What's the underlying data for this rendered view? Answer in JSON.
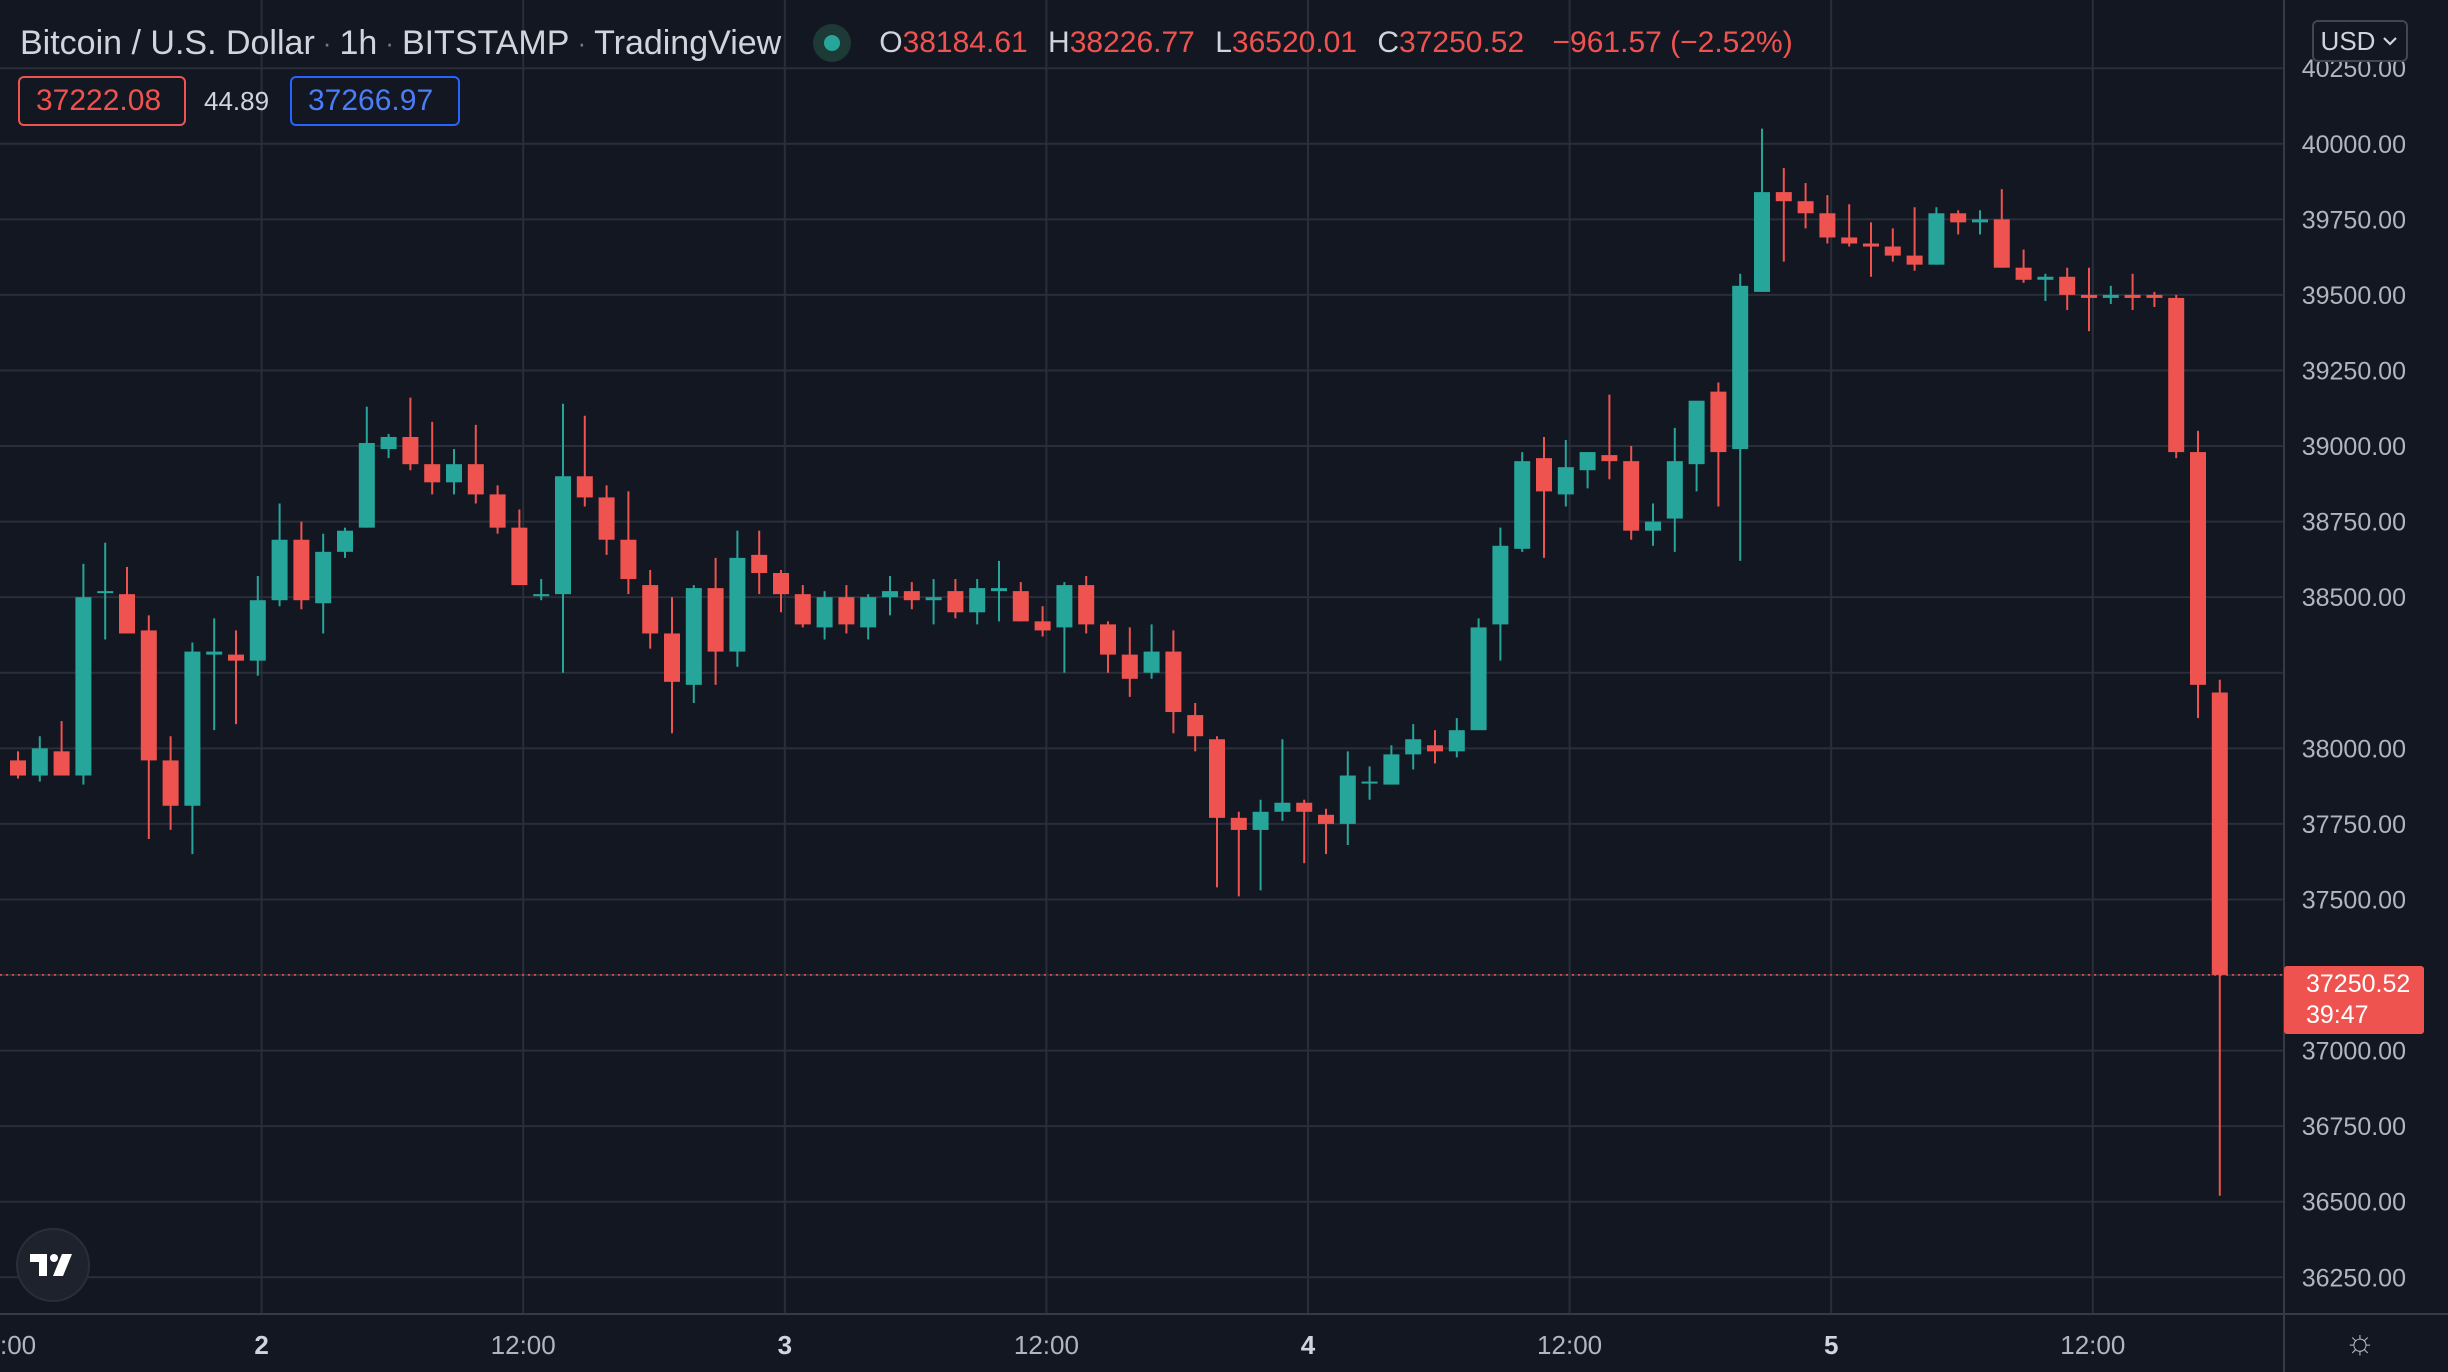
{
  "header": {
    "symbol": "Bitcoin / U.S. Dollar",
    "interval": "1h",
    "exchange": "BITSTAMP",
    "source": "TradingView",
    "sep": "·",
    "ohlc": {
      "o_label": "O",
      "o": "38184.61",
      "h_label": "H",
      "h": "38226.77",
      "l_label": "L",
      "l": "36520.01",
      "c_label": "C",
      "c": "37250.52",
      "change": "−961.57 (−2.52%)"
    }
  },
  "quote": {
    "sell": "37222.08",
    "spread": "44.89",
    "buy": "37266.97"
  },
  "currency_button": "USD",
  "price_tag": {
    "price": "37250.52",
    "countdown": "39:47"
  },
  "icons": {
    "logo": "tradingview-logo-icon",
    "settings": "gear-icon",
    "chevron": "chevron-down-icon"
  },
  "colors": {
    "background": "#131722",
    "up": "#26a69a",
    "down": "#ef5350",
    "grid": "#2a2e39",
    "text": "#d1d4dc"
  },
  "chart_data": {
    "type": "candlestick",
    "y_ticks": [
      40250,
      40000,
      39750,
      39500,
      39250,
      39000,
      38750,
      38500,
      38250,
      38000,
      37750,
      37500,
      37250,
      37000,
      36750,
      36500,
      36250
    ],
    "y_tick_labels": [
      "40250.00",
      "40000.00",
      "39750.00",
      "39500.00",
      "39250.00",
      "39000.00",
      "38750.00",
      "38500.00",
      "",
      "38000.00",
      "37750.00",
      "37500.00",
      "",
      "37000.00",
      "36750.00",
      "36500.00",
      "36250.00"
    ],
    "x_ticks": [
      {
        "label": ":00",
        "hours": 0
      },
      {
        "label": "2",
        "hours": 12
      },
      {
        "label": "12:00",
        "hours": 24
      },
      {
        "label": "3",
        "hours": 36
      },
      {
        "label": "12:00",
        "hours": 48
      },
      {
        "label": "4",
        "hours": 60
      },
      {
        "label": "12:00",
        "hours": 72
      },
      {
        "label": "5",
        "hours": 84
      },
      {
        "label": "12:00",
        "hours": 96
      }
    ],
    "x_day_labels": [
      "2",
      "3",
      "4",
      "5"
    ],
    "last_price": 37250.52,
    "candles": [
      [
        37960,
        37990,
        37900,
        37910
      ],
      [
        37910,
        38040,
        37890,
        38000
      ],
      [
        37990,
        38090,
        37930,
        37910
      ],
      [
        37910,
        38610,
        37880,
        38500
      ],
      [
        38520,
        38680,
        38360,
        38520
      ],
      [
        38510,
        38600,
        38380,
        38380
      ],
      [
        38390,
        38440,
        37700,
        37960
      ],
      [
        37960,
        38040,
        37730,
        37810
      ],
      [
        37810,
        38350,
        37650,
        38320
      ],
      [
        38310,
        38430,
        38060,
        38320
      ],
      [
        38310,
        38390,
        38080,
        38290
      ],
      [
        38290,
        38570,
        38240,
        38490
      ],
      [
        38490,
        38810,
        38470,
        38690
      ],
      [
        38690,
        38750,
        38460,
        38490
      ],
      [
        38480,
        38710,
        38380,
        38650
      ],
      [
        38650,
        38730,
        38630,
        38720
      ],
      [
        38730,
        39130,
        38730,
        39010
      ],
      [
        38990,
        39040,
        38960,
        39030
      ],
      [
        39030,
        39160,
        38920,
        38940
      ],
      [
        38940,
        39080,
        38840,
        38880
      ],
      [
        38880,
        38990,
        38840,
        38940
      ],
      [
        38940,
        39070,
        38810,
        38840
      ],
      [
        38840,
        38870,
        38710,
        38730
      ],
      [
        38730,
        38790,
        38540,
        38540
      ],
      [
        38510,
        38560,
        38490,
        38510
      ],
      [
        38510,
        39140,
        38250,
        38900
      ],
      [
        38900,
        39100,
        38800,
        38830
      ],
      [
        38830,
        38870,
        38640,
        38690
      ],
      [
        38690,
        38850,
        38510,
        38560
      ],
      [
        38540,
        38590,
        38330,
        38380
      ],
      [
        38380,
        38500,
        38050,
        38220
      ],
      [
        38210,
        38540,
        38150,
        38530
      ],
      [
        38530,
        38630,
        38210,
        38320
      ],
      [
        38320,
        38720,
        38270,
        38630
      ],
      [
        38640,
        38720,
        38510,
        38580
      ],
      [
        38580,
        38590,
        38450,
        38510
      ],
      [
        38510,
        38540,
        38400,
        38410
      ],
      [
        38400,
        38520,
        38360,
        38500
      ],
      [
        38500,
        38540,
        38380,
        38410
      ],
      [
        38400,
        38510,
        38360,
        38500
      ],
      [
        38500,
        38570,
        38440,
        38520
      ],
      [
        38520,
        38550,
        38460,
        38490
      ],
      [
        38490,
        38560,
        38410,
        38500
      ],
      [
        38520,
        38560,
        38430,
        38450
      ],
      [
        38450,
        38560,
        38410,
        38530
      ],
      [
        38520,
        38620,
        38420,
        38530
      ],
      [
        38520,
        38550,
        38420,
        38420
      ],
      [
        38420,
        38470,
        38370,
        38390
      ],
      [
        38400,
        38550,
        38250,
        38540
      ],
      [
        38540,
        38570,
        38380,
        38410
      ],
      [
        38410,
        38420,
        38250,
        38310
      ],
      [
        38310,
        38400,
        38170,
        38230
      ],
      [
        38250,
        38410,
        38230,
        38320
      ],
      [
        38320,
        38390,
        38050,
        38120
      ],
      [
        38110,
        38150,
        37990,
        38040
      ],
      [
        38030,
        38040,
        37540,
        37770
      ],
      [
        37770,
        37790,
        37510,
        37730
      ],
      [
        37730,
        37830,
        37530,
        37790
      ],
      [
        37790,
        38030,
        37760,
        37820
      ],
      [
        37820,
        37830,
        37620,
        37790
      ],
      [
        37780,
        37800,
        37650,
        37750
      ],
      [
        37750,
        37990,
        37680,
        37910
      ],
      [
        37890,
        37940,
        37830,
        37890
      ],
      [
        37880,
        38010,
        37890,
        37980
      ],
      [
        37980,
        38080,
        37930,
        38030
      ],
      [
        38010,
        38060,
        37950,
        37990
      ],
      [
        37990,
        38100,
        37970,
        38060
      ],
      [
        38060,
        38430,
        38060,
        38400
      ],
      [
        38410,
        38730,
        38290,
        38670
      ],
      [
        38660,
        38980,
        38650,
        38950
      ],
      [
        38960,
        39030,
        38630,
        38850
      ],
      [
        38840,
        39020,
        38800,
        38930
      ],
      [
        38920,
        38980,
        38860,
        38980
      ],
      [
        38970,
        39170,
        38890,
        38950
      ],
      [
        38950,
        39000,
        38690,
        38720
      ],
      [
        38720,
        38810,
        38670,
        38750
      ],
      [
        38760,
        39060,
        38650,
        38950
      ],
      [
        38940,
        39130,
        38850,
        39150
      ],
      [
        39180,
        39210,
        38800,
        38980
      ],
      [
        38990,
        39570,
        38620,
        39530
      ],
      [
        39510,
        40050,
        39510,
        39840
      ],
      [
        39840,
        39920,
        39610,
        39810
      ],
      [
        39810,
        39870,
        39720,
        39770
      ],
      [
        39770,
        39830,
        39670,
        39690
      ],
      [
        39690,
        39800,
        39660,
        39670
      ],
      [
        39670,
        39740,
        39560,
        39660
      ],
      [
        39660,
        39720,
        39610,
        39630
      ],
      [
        39630,
        39790,
        39580,
        39600
      ],
      [
        39600,
        39790,
        39600,
        39770
      ],
      [
        39770,
        39780,
        39700,
        39740
      ],
      [
        39740,
        39780,
        39700,
        39750
      ],
      [
        39750,
        39850,
        39590,
        39590
      ],
      [
        39590,
        39650,
        39540,
        39550
      ],
      [
        39550,
        39570,
        39480,
        39560
      ],
      [
        39560,
        39590,
        39450,
        39500
      ],
      [
        39500,
        39590,
        39380,
        39490
      ],
      [
        39490,
        39530,
        39470,
        39500
      ],
      [
        39500,
        39570,
        39450,
        39490
      ],
      [
        39500,
        39510,
        39460,
        39490
      ],
      [
        39490,
        39500,
        38960,
        38980
      ],
      [
        38980,
        39050,
        38100,
        38210
      ],
      [
        38184.61,
        38226.77,
        36520.01,
        37250.52
      ]
    ]
  }
}
